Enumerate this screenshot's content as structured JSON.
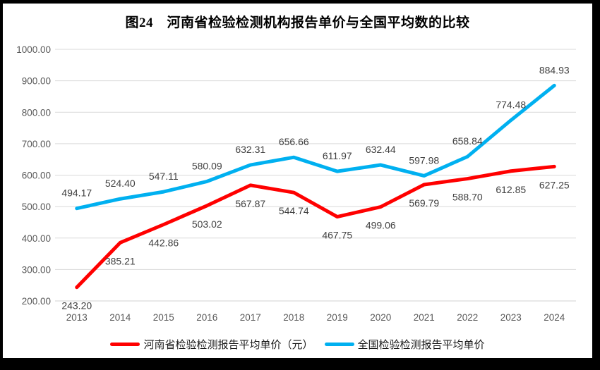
{
  "title": "图24　河南省检验检测机构报告单价与全国平均数的比较",
  "chart_data": {
    "type": "line",
    "title": "图24　河南省检验检测机构报告单价与全国平均数的比较",
    "categories": [
      "2013",
      "2014",
      "2015",
      "2016",
      "2017",
      "2018",
      "2019",
      "2020",
      "2021",
      "2022",
      "2023",
      "2024"
    ],
    "series": [
      {
        "name": "河南省检验检测报告平均单价（元）",
        "color": "#FF0000",
        "label_position": "below",
        "values": [
          243.2,
          385.21,
          442.86,
          503.02,
          567.87,
          544.74,
          467.75,
          499.06,
          569.79,
          588.7,
          612.85,
          627.25
        ]
      },
      {
        "name": "全国检验检测报告平均单价",
        "color": "#00B0F0",
        "label_position": "above",
        "values": [
          494.17,
          524.4,
          547.11,
          580.09,
          632.31,
          656.66,
          611.97,
          632.44,
          597.98,
          658.84,
          774.48,
          884.93
        ]
      }
    ],
    "ylim": [
      200,
      1000
    ],
    "ytick_step": 100,
    "value_decimals": 2,
    "grid": true,
    "legend_position": "bottom",
    "xlabel": "",
    "ylabel": ""
  },
  "colors": {
    "grid_line": "#D9D9D9",
    "axis_line": "#D0D0D0",
    "axis_text": "#595959",
    "data_label_text": "#404040",
    "legend_text": "#1A1A1A",
    "frame_border": "#000000",
    "background": "#FFFFFF"
  }
}
